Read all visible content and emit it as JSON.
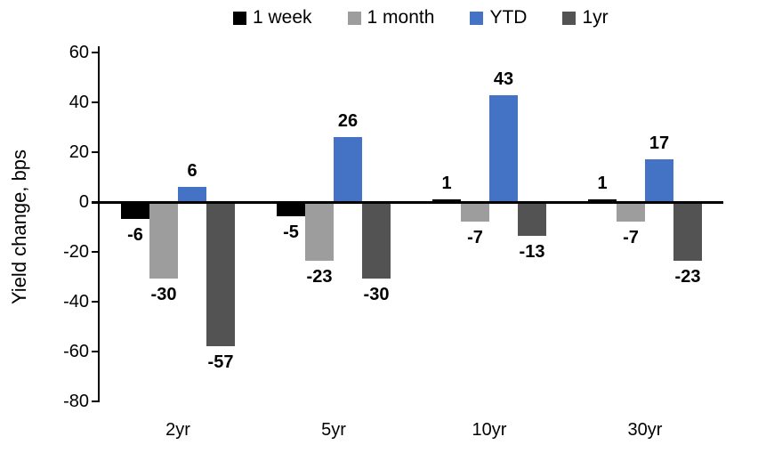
{
  "chart_data": {
    "type": "bar",
    "ylabel": "Yield change, bps",
    "xlabel": "",
    "categories": [
      "2yr",
      "5yr",
      "10yr",
      "30yr"
    ],
    "series": [
      {
        "name": "1 week",
        "color": "#000000",
        "values": [
          -6,
          -5,
          1,
          1
        ]
      },
      {
        "name": "1 month",
        "color": "#9D9D9D",
        "values": [
          -30,
          -23,
          -7,
          -7
        ]
      },
      {
        "name": "YTD",
        "color": "#4472C4",
        "values": [
          6,
          26,
          43,
          17
        ]
      },
      {
        "name": "1yr",
        "color": "#535353",
        "values": [
          -57,
          -30,
          -13,
          -23
        ]
      }
    ],
    "ylim": [
      -80,
      60
    ],
    "yticks": [
      60,
      40,
      20,
      0,
      -20,
      -40,
      -60,
      -80
    ],
    "grid": false,
    "data_labels": true,
    "legend_position": "top"
  }
}
